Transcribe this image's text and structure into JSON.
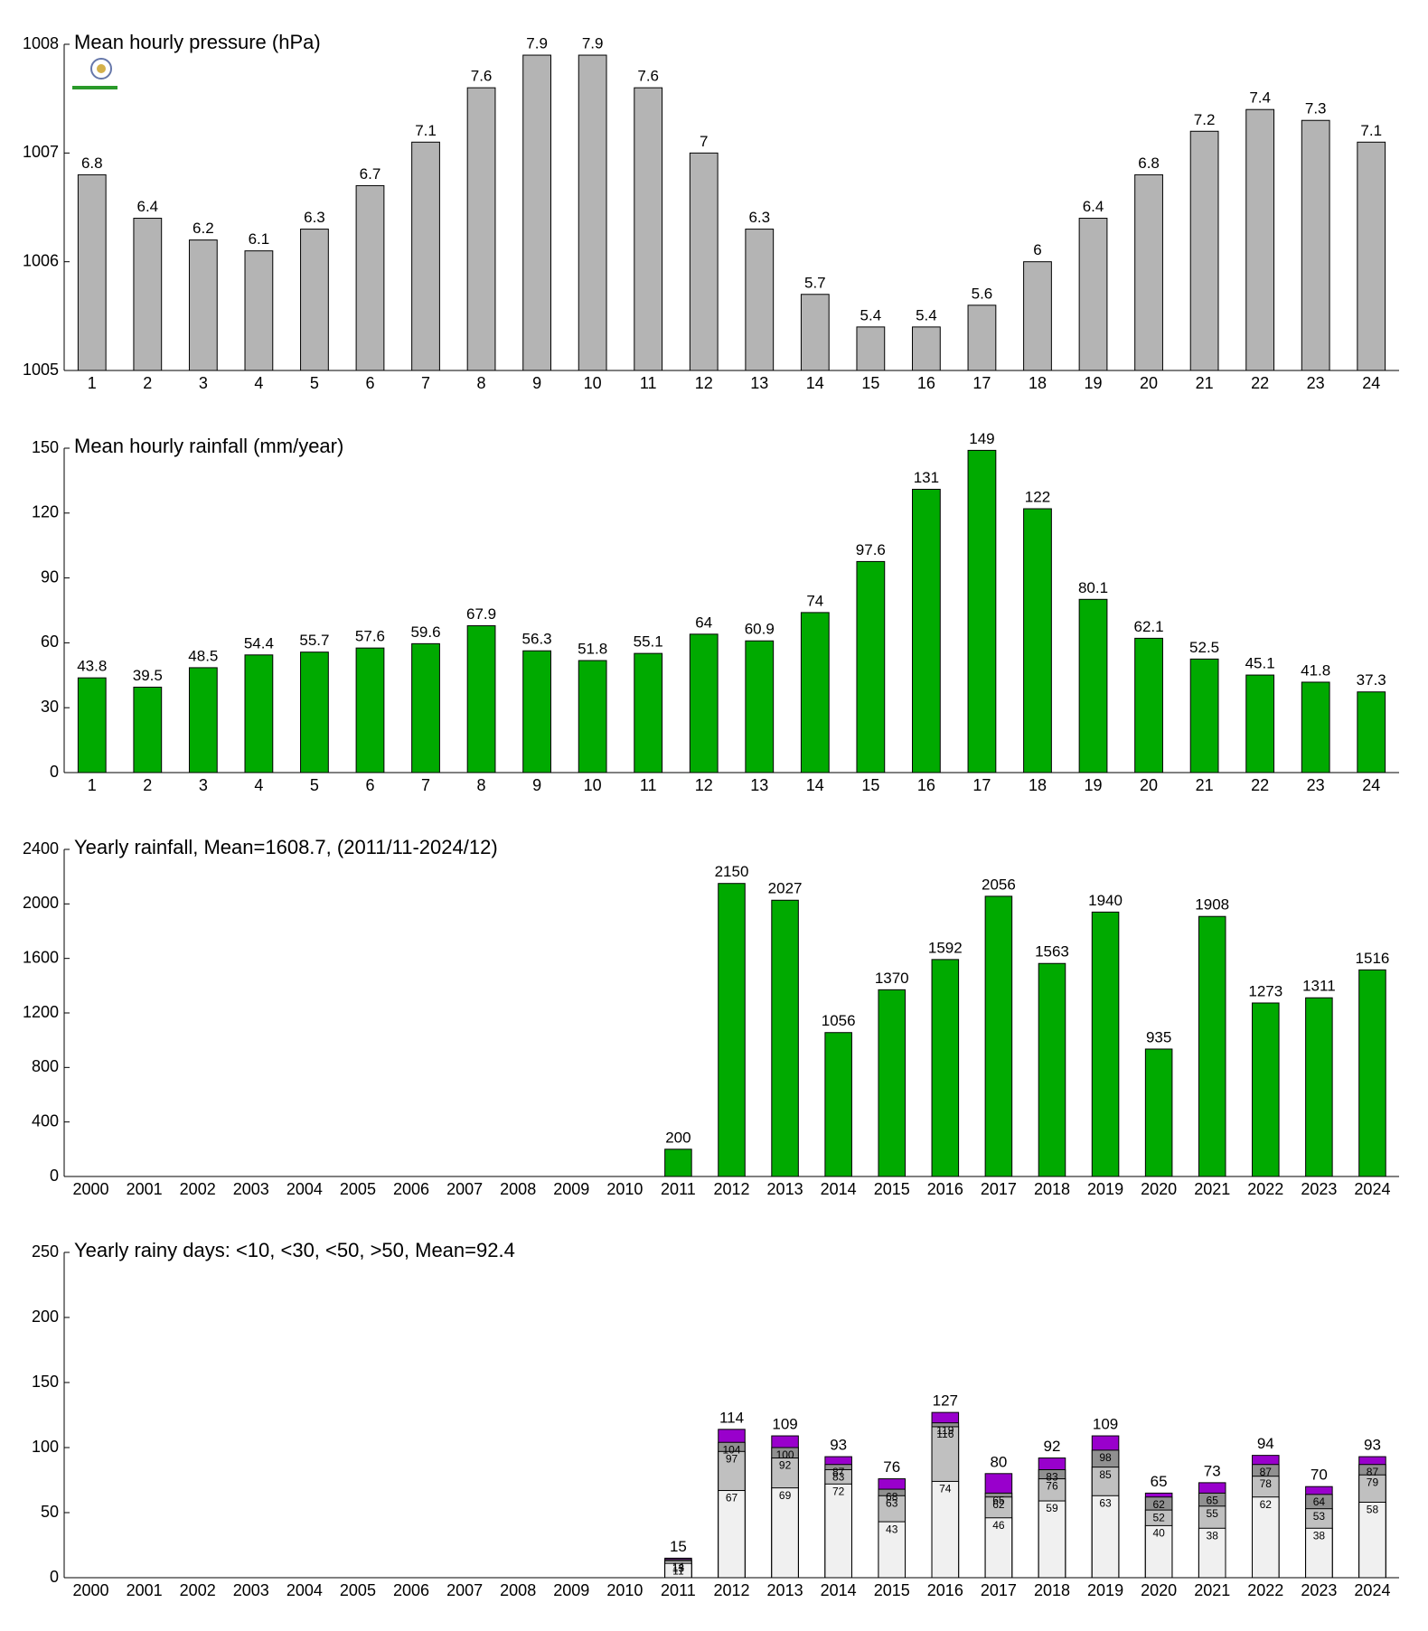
{
  "chart_data": [
    {
      "type": "bar",
      "title": "Mean hourly pressure (hPa)",
      "categories": [
        "1",
        "2",
        "3",
        "4",
        "5",
        "6",
        "7",
        "8",
        "9",
        "10",
        "11",
        "12",
        "13",
        "14",
        "15",
        "16",
        "17",
        "18",
        "19",
        "20",
        "21",
        "22",
        "23",
        "24"
      ],
      "values": [
        1006.8,
        1006.4,
        1006.2,
        1006.1,
        1006.3,
        1006.7,
        1007.1,
        1007.6,
        1007.9,
        1007.9,
        1007.6,
        1007.0,
        1006.3,
        1005.7,
        1005.4,
        1005.4,
        1005.6,
        1006.0,
        1006.4,
        1006.8,
        1007.2,
        1007.4,
        1007.3,
        1007.1
      ],
      "value_labels": [
        "6.8",
        "6.4",
        "6.2",
        "6.1",
        "6.3",
        "6.7",
        "7.1",
        "7.6",
        "7.9",
        "7.9",
        "7.6",
        "7",
        "6.3",
        "5.7",
        "5.4",
        "5.4",
        "5.6",
        "6",
        "6.4",
        "6.8",
        "7.2",
        "7.4",
        "7.3",
        "7.1"
      ],
      "color": "#b4b4b4",
      "ylim": [
        1005,
        1008
      ],
      "yticks": [
        1005,
        1006,
        1007,
        1008
      ]
    },
    {
      "type": "bar",
      "title": "Mean hourly rainfall (mm/year)",
      "categories": [
        "1",
        "2",
        "3",
        "4",
        "5",
        "6",
        "7",
        "8",
        "9",
        "10",
        "11",
        "12",
        "13",
        "14",
        "15",
        "16",
        "17",
        "18",
        "19",
        "20",
        "21",
        "22",
        "23",
        "24"
      ],
      "values": [
        43.8,
        39.5,
        48.5,
        54.4,
        55.7,
        57.6,
        59.6,
        67.9,
        56.3,
        51.8,
        55.1,
        64,
        60.9,
        74,
        97.6,
        131,
        149,
        122,
        80.1,
        62.1,
        52.5,
        45.1,
        41.8,
        37.3
      ],
      "color": "#00aa00",
      "ylim": [
        0,
        150
      ],
      "yticks": [
        0,
        30,
        60,
        90,
        120,
        150
      ]
    },
    {
      "type": "bar",
      "title": "Yearly rainfall, Mean=1608.7, (2011/11-2024/12)",
      "categories": [
        "2000",
        "2001",
        "2002",
        "2003",
        "2004",
        "2005",
        "2006",
        "2007",
        "2008",
        "2009",
        "2010",
        "2011",
        "2012",
        "2013",
        "2014",
        "2015",
        "2016",
        "2017",
        "2018",
        "2019",
        "2020",
        "2021",
        "2022",
        "2023",
        "2024"
      ],
      "values": [
        null,
        null,
        null,
        null,
        null,
        null,
        null,
        null,
        null,
        null,
        null,
        200,
        2150,
        2027,
        1056,
        1370,
        1592,
        2056,
        1563,
        1940,
        935,
        1908,
        1273,
        1311,
        1516
      ],
      "color": "#00aa00",
      "ylim": [
        0,
        2400
      ],
      "yticks": [
        0,
        400,
        800,
        1200,
        1600,
        2000,
        2400
      ]
    },
    {
      "type": "bar",
      "title": "Yearly rainy days: <10, <30, <50, >50, Mean=92.4",
      "categories": [
        "2000",
        "2001",
        "2002",
        "2003",
        "2004",
        "2005",
        "2006",
        "2007",
        "2008",
        "2009",
        "2010",
        "2011",
        "2012",
        "2013",
        "2014",
        "2015",
        "2016",
        "2017",
        "2018",
        "2019",
        "2020",
        "2021",
        "2022",
        "2023",
        "2024"
      ],
      "series": [
        {
          "color": "#f0f0f0",
          "values": [
            null,
            null,
            null,
            null,
            null,
            null,
            null,
            null,
            null,
            null,
            null,
            11,
            67,
            69,
            72,
            43,
            74,
            46,
            59,
            63,
            40,
            38,
            62,
            38,
            58
          ]
        },
        {
          "color": "#c0c0c0",
          "values": [
            null,
            null,
            null,
            null,
            null,
            null,
            null,
            null,
            null,
            null,
            null,
            13,
            97,
            92,
            83,
            63,
            116,
            62,
            76,
            85,
            52,
            55,
            78,
            53,
            79
          ]
        },
        {
          "color": "#909090",
          "values": [
            null,
            null,
            null,
            null,
            null,
            null,
            null,
            null,
            null,
            null,
            null,
            14,
            104,
            100,
            87,
            68,
            119,
            65,
            83,
            98,
            62,
            65,
            87,
            64,
            87
          ]
        },
        {
          "color": "#9900cc",
          "values": [
            null,
            null,
            null,
            null,
            null,
            null,
            null,
            null,
            null,
            null,
            null,
            15,
            114,
            109,
            93,
            76,
            127,
            80,
            92,
            109,
            65,
            73,
            94,
            70,
            93
          ]
        }
      ],
      "ylim": [
        0,
        250
      ],
      "yticks": [
        0,
        50,
        100,
        150,
        200,
        250
      ]
    }
  ]
}
